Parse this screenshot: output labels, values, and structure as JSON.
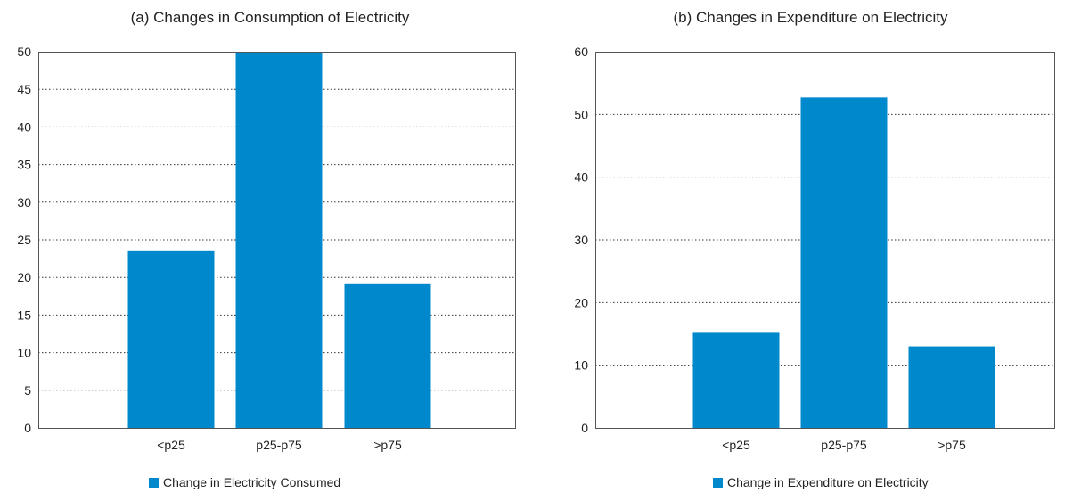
{
  "colors": {
    "bar": "#0088cc",
    "grid": "#333333",
    "axis": "#555555"
  },
  "chart_data": [
    {
      "type": "bar",
      "title": "(a) Changes in Consumption of Electricity",
      "categories": [
        "<p25",
        "p25-p75",
        ">p75"
      ],
      "series": [
        {
          "name": "Change in Electricity Consumed",
          "values": [
            23.6,
            50,
            19.1
          ]
        }
      ],
      "xlabel": "",
      "ylabel": "",
      "ylim": [
        0,
        50
      ],
      "yticks": [
        0,
        5,
        10,
        15,
        20,
        25,
        30,
        35,
        40,
        45,
        50
      ],
      "grid": "dotted horizontal",
      "legend": "bottom"
    },
    {
      "type": "bar",
      "title": "(b) Changes in Expenditure on Electricity",
      "categories": [
        "<p25",
        "p25-p75",
        ">p75"
      ],
      "series": [
        {
          "name": "Change in Expenditure on Electricity",
          "values": [
            15.3,
            52.7,
            13
          ]
        }
      ],
      "xlabel": "",
      "ylabel": "",
      "ylim": [
        0,
        60
      ],
      "yticks": [
        0,
        10,
        20,
        30,
        40,
        50,
        60
      ],
      "grid": "dotted horizontal",
      "legend": "bottom"
    }
  ]
}
